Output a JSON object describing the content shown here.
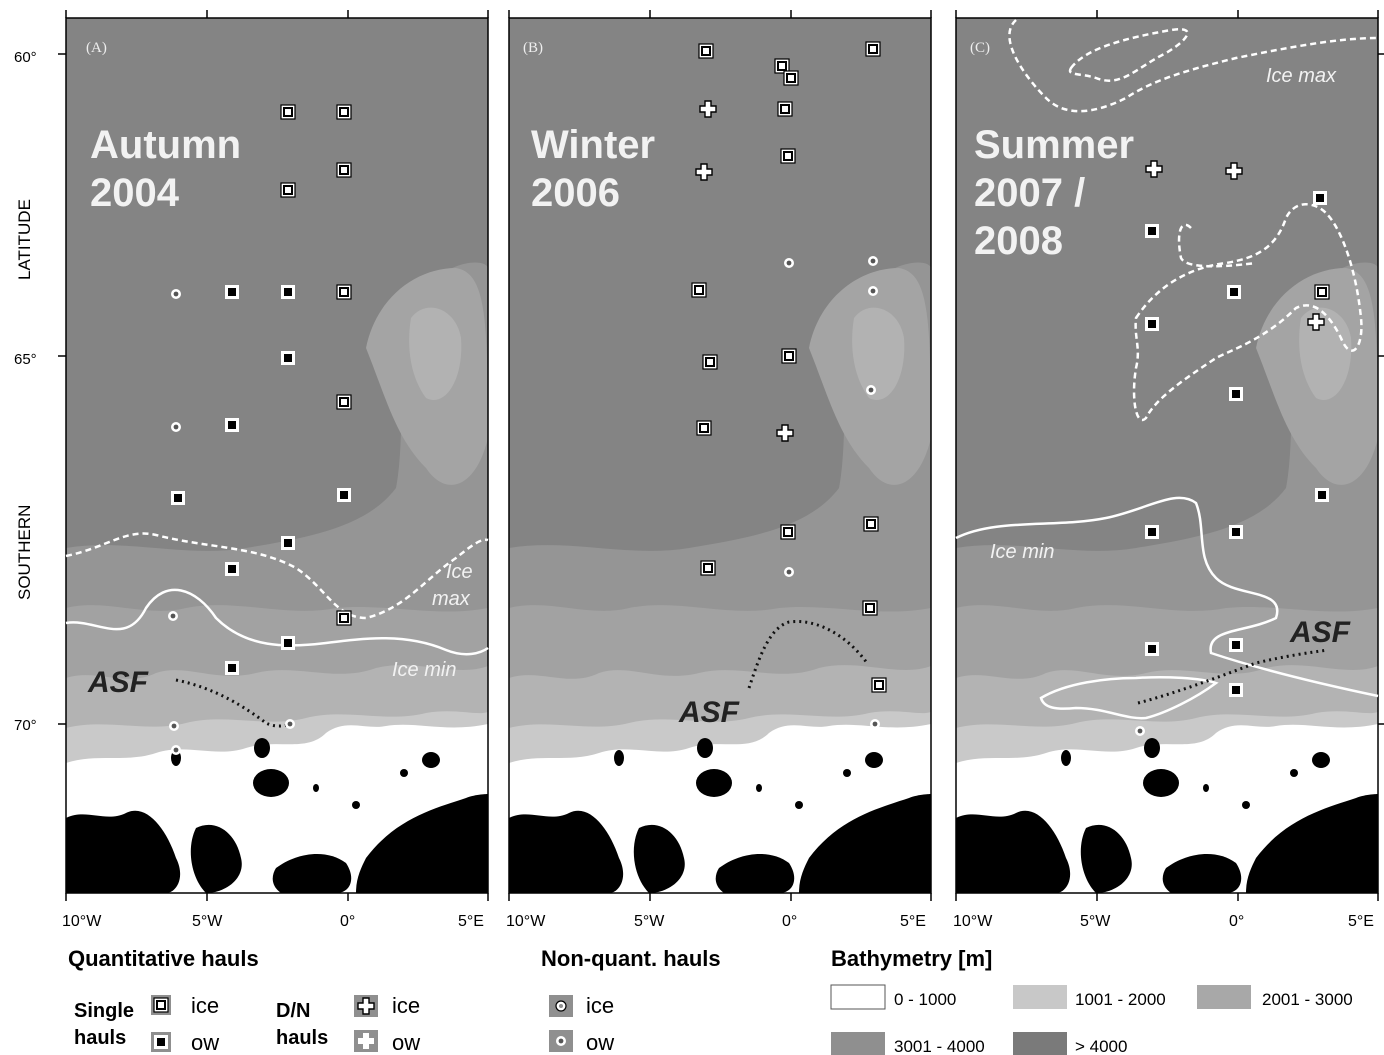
{
  "axis": {
    "y_title_1": "SOUTHERN",
    "y_title_2": "LATITUDE",
    "lat_ticks": [
      "60°",
      "65°",
      "70°"
    ],
    "lon_ticks": [
      "10°W",
      "5°W",
      "0°",
      "5°E"
    ]
  },
  "panels": [
    {
      "id": "A",
      "tag": "(A)",
      "title_1": "Autumn",
      "title_2": "2004",
      "title_3": ""
    },
    {
      "id": "B",
      "tag": "(B)",
      "title_1": "Winter",
      "title_2": "2006",
      "title_3": ""
    },
    {
      "id": "C",
      "tag": "(C)",
      "title_1": "Summer",
      "title_2": "2007 /",
      "title_3": "2008"
    }
  ],
  "annotations": {
    "ice_max_1": "Ice",
    "ice_max_2": "max",
    "ice_min": "Ice min",
    "asf": "ASF",
    "ice_max_c": "Ice max",
    "ice_min_c": "Ice min"
  },
  "legend": {
    "quant_title": "Quantitative hauls",
    "single_1": "Single",
    "single_2": "hauls",
    "dn_1": "D/N",
    "dn_2": "hauls",
    "ice": "ice",
    "ow": "ow",
    "nonquant_title": "Non-quant. hauls",
    "bathy_title": "Bathymetry [m]",
    "bathy_classes": [
      "0 - 1000",
      "1001 - 2000",
      "2001 - 3000",
      "3001 - 4000",
      "> 4000"
    ],
    "bathy_colors": [
      "#ffffff",
      "#c8c8c8",
      "#a8a8a8",
      "#8f8f8f",
      "#7a7a7a"
    ]
  },
  "colors": {
    "deep": "#848484",
    "mid": "#989898",
    "shelf": "#b4b4b4",
    "land": "#000000"
  }
}
